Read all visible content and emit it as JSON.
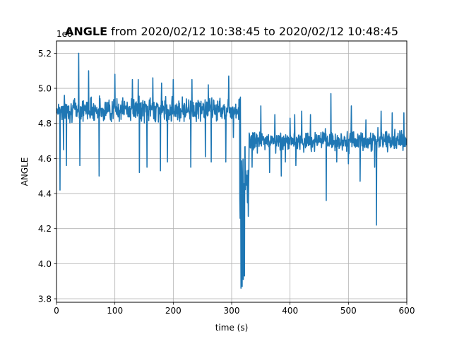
{
  "chart_data": {
    "type": "line",
    "title_bold": "ANGLE",
    "title_rest": " from 2020/02/12 10:38:45 to 2020/02/12 10:48:45",
    "xlabel": "time (s)",
    "ylabel": "ANGLE",
    "offset_text": "1e6",
    "xlim": [
      0,
      600
    ],
    "ylim": [
      3.78,
      5.27
    ],
    "xticks": [
      0,
      100,
      200,
      300,
      400,
      500,
      600
    ],
    "xtick_labels": [
      "0",
      "100",
      "200",
      "300",
      "400",
      "500",
      "600"
    ],
    "yticks": [
      3.8,
      4.0,
      4.2,
      4.4,
      4.6,
      4.8,
      5.0,
      5.2
    ],
    "ytick_labels": [
      "3.8",
      "4.0",
      "4.2",
      "4.4",
      "4.6",
      "4.8",
      "5.0",
      "5.2"
    ],
    "grid": true,
    "series": [
      {
        "color": "#1f77b4",
        "segments": [
          {
            "x_start": 0,
            "x_end": 314,
            "baseline": 4.88,
            "noise": 0.06,
            "spikes_down": [
              [
                6,
                4.42
              ],
              [
                12,
                4.65
              ],
              [
                17,
                4.56
              ],
              [
                40,
                4.56
              ],
              [
                55,
                4.56
              ],
              [
                73,
                4.5
              ],
              [
                100,
                4.63
              ],
              [
                130,
                4.62
              ],
              [
                142,
                4.52
              ],
              [
                155,
                4.55
              ],
              [
                178,
                4.53
              ],
              [
                190,
                4.58
              ],
              [
                230,
                4.55
              ],
              [
                255,
                4.61
              ],
              [
                265,
                4.58
              ],
              [
                290,
                4.58
              ],
              [
                303,
                4.72
              ]
            ],
            "spikes_up": [
              [
                38,
                5.2
              ],
              [
                55,
                5.1
              ],
              [
                100,
                5.08
              ],
              [
                130,
                5.05
              ],
              [
                140,
                5.05
              ],
              [
                165,
                5.06
              ],
              [
                180,
                5.03
              ],
              [
                200,
                5.05
              ],
              [
                232,
                5.05
              ],
              [
                260,
                5.02
              ],
              [
                295,
                5.07
              ]
            ]
          },
          {
            "x_start": 314,
            "x_end": 330,
            "baseline": 4.45,
            "noise": 0.25,
            "spikes_down": [
              [
                316,
                3.86
              ],
              [
                318,
                3.87
              ],
              [
                320,
                3.91
              ],
              [
                322,
                3.93
              ],
              [
                327,
                4.35
              ]
            ],
            "spikes_up": [
              [
                315,
                4.95
              ]
            ]
          },
          {
            "x_start": 330,
            "x_end": 600,
            "baseline": 4.7,
            "noise": 0.05,
            "spikes_down": [
              [
                335,
                4.55
              ],
              [
                350,
                4.6
              ],
              [
                365,
                4.52
              ],
              [
                385,
                4.5
              ],
              [
                392,
                4.58
              ],
              [
                400,
                4.42
              ],
              [
                410,
                4.56
              ],
              [
                435,
                4.4
              ],
              [
                462,
                4.36
              ],
              [
                470,
                4.38
              ],
              [
                480,
                4.58
              ],
              [
                500,
                4.57
              ],
              [
                520,
                4.47
              ],
              [
                545,
                4.55
              ],
              [
                548,
                4.22
              ],
              [
                575,
                4.58
              ]
            ],
            "spikes_up": [
              [
                350,
                4.9
              ],
              [
                374,
                4.85
              ],
              [
                400,
                4.83
              ],
              [
                408,
                4.85
              ],
              [
                420,
                4.87
              ],
              [
                435,
                4.85
              ],
              [
                470,
                4.97
              ],
              [
                505,
                4.9
              ],
              [
                530,
                4.82
              ],
              [
                556,
                4.87
              ],
              [
                575,
                4.86
              ],
              [
                595,
                4.86
              ]
            ]
          }
        ]
      }
    ]
  }
}
